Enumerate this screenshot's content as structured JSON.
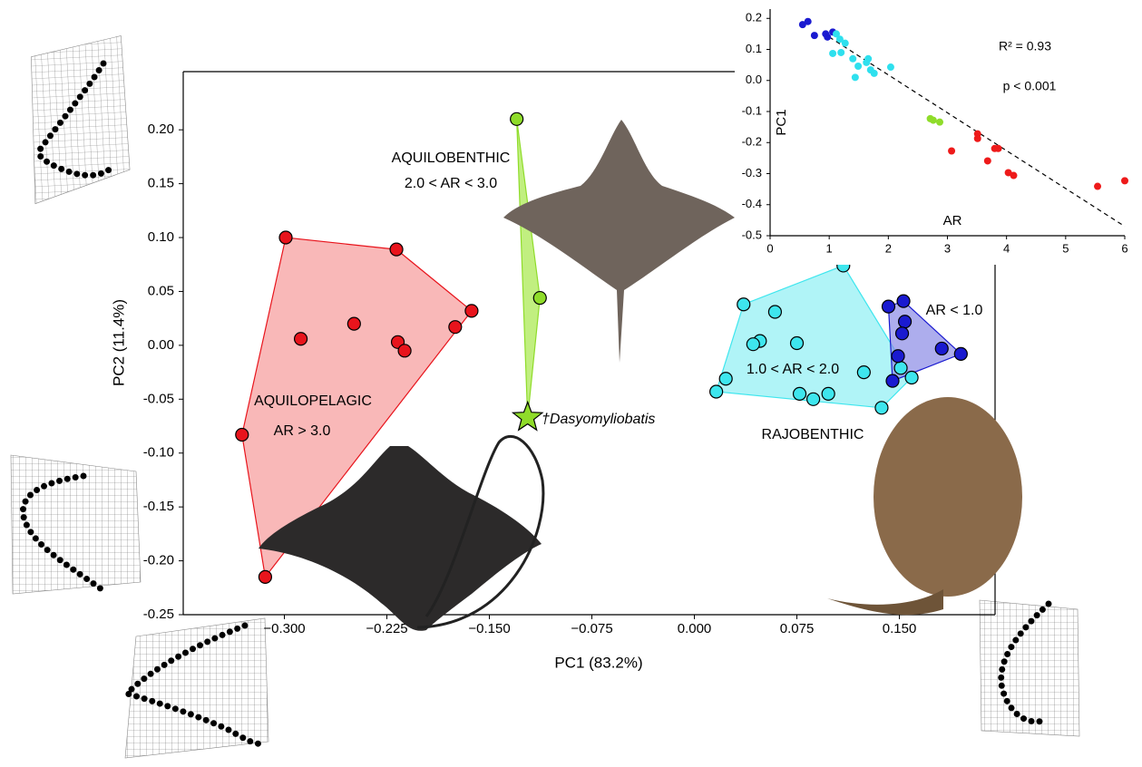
{
  "chart_data": [
    {
      "type": "scatter",
      "x_label": "PC1 (83.2%)",
      "y_label": "PC2 (11.4%)",
      "xlim": [
        -0.374,
        0.22
      ],
      "ylim": [
        -0.25,
        0.254
      ],
      "xticks": [
        {
          "value": -0.3,
          "label": "−0.300"
        },
        {
          "value": -0.225,
          "label": "−0.225"
        },
        {
          "value": -0.15,
          "label": "−0.150"
        },
        {
          "value": -0.075,
          "label": "−0.075"
        },
        {
          "value": 0,
          "label": "0.000"
        },
        {
          "value": 0.075,
          "label": "0.075"
        },
        {
          "value": 0.15,
          "label": "0.150"
        }
      ],
      "yticks": [
        {
          "value": 0.2,
          "label": "0.20"
        },
        {
          "value": 0.15,
          "label": "0.15"
        },
        {
          "value": 0.1,
          "label": "0.10"
        },
        {
          "value": 0.05,
          "label": "0.05"
        },
        {
          "value": 0,
          "label": "0.00"
        },
        {
          "value": -0.05,
          "label": "-0.05"
        },
        {
          "value": -0.1,
          "label": "-0.10"
        },
        {
          "value": -0.15,
          "label": "-0.15"
        },
        {
          "value": -0.2,
          "label": "-0.20"
        },
        {
          "value": -0.25,
          "label": "-0.25"
        }
      ],
      "hull": true,
      "series": [
        {
          "color": "#e8141c",
          "hull_color": "#f79a9a",
          "x": [
            -0.299,
            -0.218,
            -0.163,
            -0.175,
            -0.249,
            -0.288,
            -0.217,
            -0.212,
            -0.331,
            -0.314
          ],
          "y": [
            0.1,
            0.089,
            0.032,
            0.017,
            0.02,
            0.006,
            0.003,
            -0.005,
            -0.083,
            -0.215
          ]
        },
        {
          "color": "#8fdc2a",
          "hull_color": "#a6e84a",
          "x": [
            -0.13,
            -0.113,
            -0.122
          ],
          "y": [
            0.21,
            0.044,
            -0.067
          ],
          "marker": [
            "circle",
            "circle",
            "star"
          ]
        },
        {
          "color": "#3ee6ee",
          "hull_color": "#8ef0f4",
          "x": [
            0.109,
            0.036,
            0.059,
            0.048,
            0.043,
            0.075,
            0.023,
            0.016,
            0.077,
            0.087,
            0.098,
            0.124,
            0.137,
            0.151,
            0.159
          ],
          "y": [
            0.074,
            0.038,
            0.031,
            0.004,
            0.001,
            0.002,
            -0.031,
            -0.043,
            -0.045,
            -0.05,
            -0.045,
            -0.025,
            -0.058,
            -0.021,
            -0.03
          ]
        },
        {
          "color": "#1a1ad0",
          "hull_color": "#8a8ae6",
          "x": [
            0.142,
            0.153,
            0.154,
            0.152,
            0.181,
            0.195,
            0.149,
            0.145
          ],
          "y": [
            0.036,
            0.041,
            0.022,
            0.011,
            -0.003,
            -0.008,
            -0.01,
            -0.033
          ]
        }
      ],
      "annotations": [
        {
          "text": "AQUILOBENTHIC",
          "color": "#22b060"
        },
        {
          "text": "2.0 < AR < 3.0",
          "color": "#22b060"
        },
        {
          "text": "AQUILOPELAGIC",
          "color": "#e8141c"
        },
        {
          "text": "AR > 3.0",
          "color": "#e8141c"
        },
        {
          "text": "1.0 < AR < 2.0",
          "color": "#1ab8c4"
        },
        {
          "text": "AR < 1.0",
          "color": "#2a3ad8"
        },
        {
          "text": "RAJOBENTHIC",
          "color": "#2a3ad8"
        },
        {
          "text": "†Dasyomyliobatis",
          "color": "#22b060"
        }
      ]
    },
    {
      "type": "scatter",
      "x_label": "AR",
      "y_label": "PC1",
      "xlim": [
        0,
        6
      ],
      "ylim": [
        -0.5,
        0.23
      ],
      "xticks": [
        0,
        1,
        2,
        3,
        4,
        5,
        6
      ],
      "yticks": [
        0.2,
        0.1,
        {
          "value": 0,
          "label": "0.0"
        },
        -0.1,
        -0.2,
        -0.3,
        -0.4,
        -0.5
      ],
      "series": [
        {
          "color": "#1a1ad0",
          "x": [
            0.55,
            0.64,
            0.75,
            0.94,
            0.97,
            1.06
          ],
          "y": [
            0.18,
            0.19,
            0.145,
            0.15,
            0.14,
            0.156
          ]
        },
        {
          "color": "#2ee0ee",
          "x": [
            1.12,
            1.18,
            1.27,
            1.06,
            1.2,
            1.4,
            1.49,
            1.66,
            1.7,
            1.76,
            1.44,
            2.04,
            1.63
          ],
          "y": [
            0.15,
            0.133,
            0.12,
            0.087,
            0.09,
            0.07,
            0.046,
            0.07,
            0.034,
            0.023,
            0.01,
            0.043,
            0.058
          ]
        },
        {
          "color": "#8fdc2a",
          "x": [
            2.71,
            2.87,
            2.76
          ],
          "y": [
            -0.123,
            -0.134,
            -0.128
          ]
        },
        {
          "color": "#ee1a1a",
          "x": [
            3.51,
            3.51,
            3.07,
            3.8,
            3.86,
            3.68,
            4.03,
            4.12,
            5.54,
            6.0
          ],
          "y": [
            -0.172,
            -0.187,
            -0.227,
            -0.219,
            -0.219,
            -0.259,
            -0.297,
            -0.306,
            -0.341,
            -0.323
          ]
        }
      ],
      "trendline": {
        "x": [
          1,
          6
        ],
        "y": [
          0.14,
          -0.47
        ]
      },
      "annotations": [
        {
          "text": "R² = 0.93",
          "color": "#000"
        },
        {
          "text": "p < 0.001",
          "color": "#000"
        }
      ]
    }
  ]
}
